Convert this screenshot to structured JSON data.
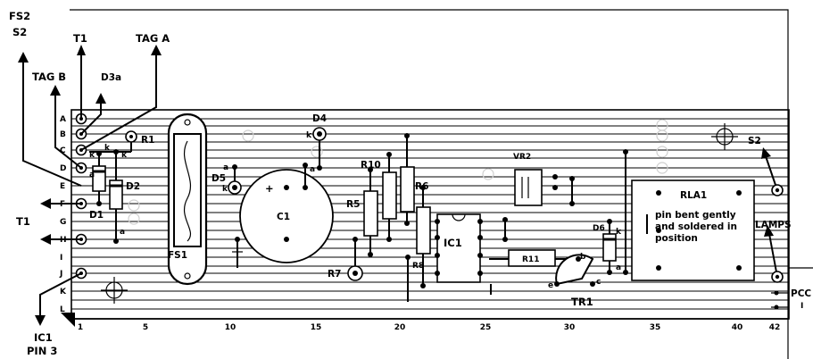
{
  "rows": [
    "A",
    "B",
    "C",
    "D",
    "E",
    "F",
    "G",
    "H",
    "I",
    "J",
    "K",
    "L"
  ],
  "columns": [
    "1",
    "5",
    "10",
    "15",
    "20",
    "25",
    "30",
    "35",
    "40",
    "42"
  ],
  "components": {
    "r1": "R1",
    "d2": "D2",
    "d1": "D1",
    "fs1": "FS1",
    "d5": "D5",
    "c1": "C1",
    "d4": "D4",
    "r10": "R10",
    "r5": "R5",
    "r6": "R6",
    "r7": "R7",
    "r8": "R8",
    "ic1": "IC1",
    "vr2": "VR2",
    "r11": "R11",
    "d6": "D6",
    "tr1": "TR1",
    "rla1": "RLA1"
  },
  "pin_marks": {
    "a": "a",
    "k": "k",
    "plus": "+",
    "b": "b",
    "c": "c",
    "e": "e"
  },
  "external": {
    "fs2": "FS2",
    "s2_top": "S2",
    "t1_top": "T1",
    "tag_a": "TAG A",
    "tag_b": "TAG B",
    "d3a": "D3a",
    "t1_left": "T1",
    "ic1_pin3_line1": "IC1",
    "ic1_pin3_line2": "PIN 3",
    "s2_right": "S2",
    "lamps": "LAMPS",
    "pcc": "PCC",
    "pcc_sub": "I"
  },
  "note": [
    "pin bent gently",
    "and soldered in",
    "position"
  ]
}
